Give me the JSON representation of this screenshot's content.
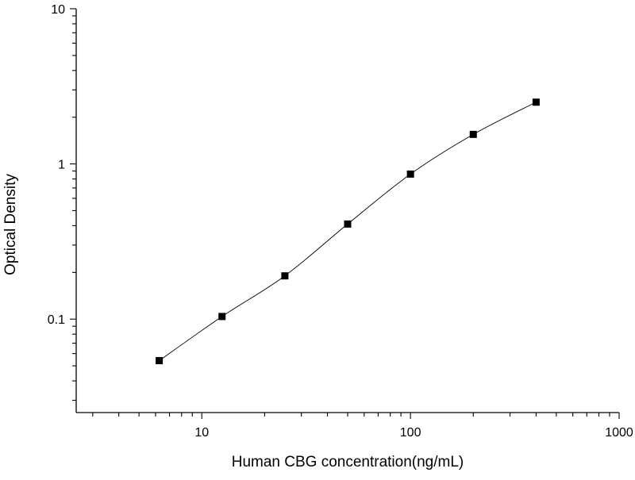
{
  "chart_data": {
    "type": "scatter",
    "title": "",
    "xlabel": "Human CBG concentration(ng/mL)",
    "ylabel": "Optical Density",
    "xscale": "log",
    "yscale": "log",
    "xlim": [
      2.5,
      1000
    ],
    "ylim": [
      0.025,
      10
    ],
    "xticks": [
      10,
      100,
      1000
    ],
    "xtick_labels": [
      "10",
      "100",
      "1000"
    ],
    "yticks": [
      0.1,
      1,
      10
    ],
    "ytick_labels": [
      "0.1",
      "1",
      "10"
    ],
    "grid": false,
    "legend": "none",
    "marker": "square",
    "fit_line": "smooth curve through points",
    "colors": {
      "marker": "#000000",
      "line": "#000000",
      "axis": "#000000",
      "background": "#ffffff"
    },
    "series": [
      {
        "x": [
          6.25,
          12.5,
          25,
          50,
          100,
          200,
          400
        ],
        "y": [
          0.054,
          0.104,
          0.19,
          0.41,
          0.86,
          1.55,
          2.5
        ]
      }
    ]
  }
}
